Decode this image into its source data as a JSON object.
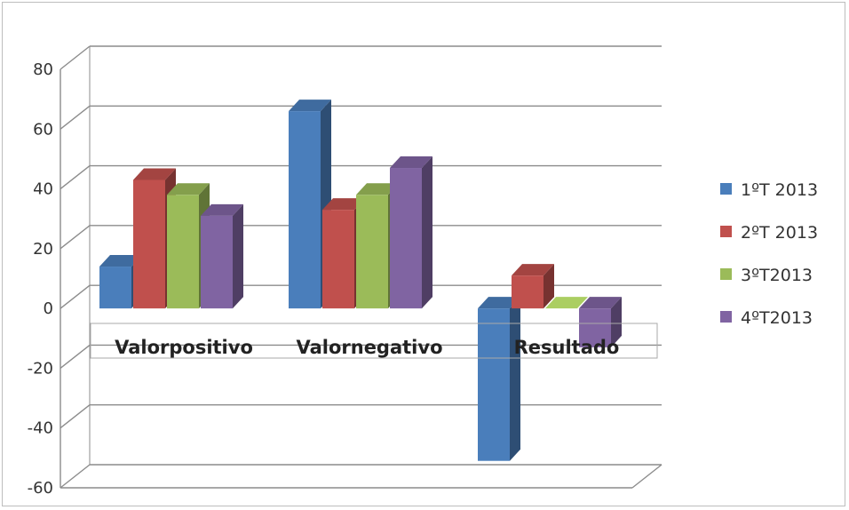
{
  "chart_data": {
    "type": "bar",
    "categories": [
      "Valorpositivo",
      "Valornegativo",
      "Resultado"
    ],
    "series": [
      {
        "name": "1ºT 2013",
        "values": [
          14,
          66,
          -51
        ],
        "color": "#4a7ebb"
      },
      {
        "name": "2ºT 2013",
        "values": [
          43,
          33,
          11
        ],
        "color": "#c0504d"
      },
      {
        "name": "3ºT2013",
        "values": [
          38,
          38,
          0
        ],
        "color": "#9bbb59"
      },
      {
        "name": "4ºT2013",
        "values": [
          31,
          47,
          -13
        ],
        "color": "#8064a2"
      }
    ],
    "ylim": [
      -60,
      80
    ],
    "yticks": [
      "80",
      "60",
      "40",
      "20",
      "0",
      "-20",
      "-40",
      "-60"
    ],
    "legend_position": "right",
    "grid": true,
    "style": "3d-clustered-column"
  }
}
